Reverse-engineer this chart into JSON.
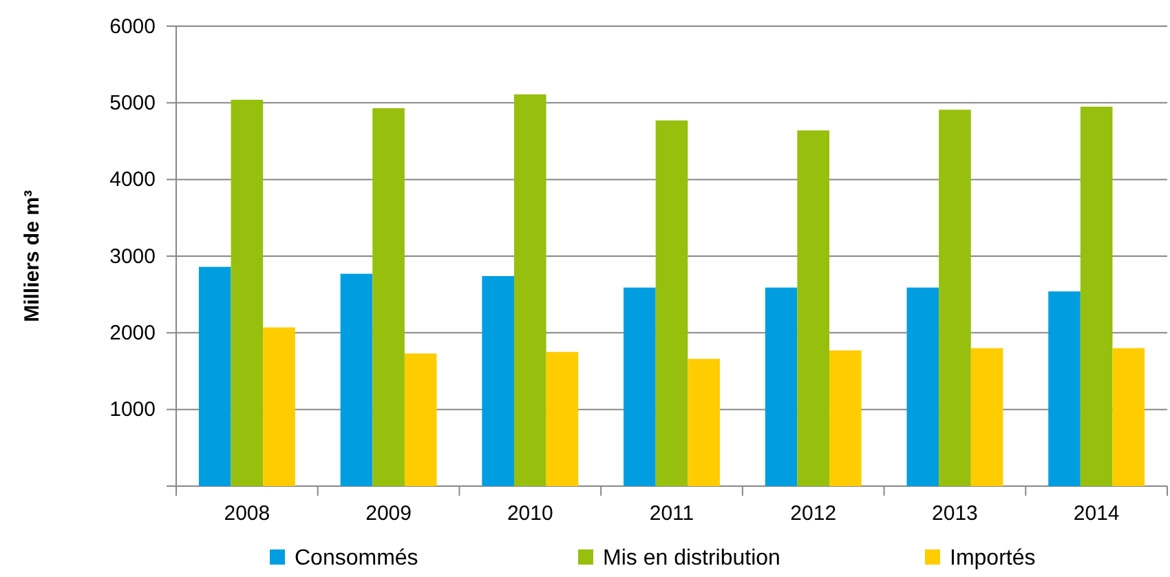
{
  "chart_data": {
    "type": "bar",
    "ylabel": "Milliers de m³",
    "categories": [
      "2008",
      "2009",
      "2010",
      "2011",
      "2012",
      "2013",
      "2014"
    ],
    "series": [
      {
        "name": "Consommés",
        "color": "#009ee0",
        "values": [
          2860,
          2770,
          2740,
          2590,
          2590,
          2590,
          2540
        ]
      },
      {
        "name": "Mis en distribution",
        "color": "#97bf0d",
        "values": [
          5040,
          4930,
          5110,
          4770,
          4640,
          4910,
          4950
        ]
      },
      {
        "name": "Importés",
        "color": "#ffcc00",
        "values": [
          2070,
          1730,
          1750,
          1660,
          1770,
          1800,
          1800
        ]
      }
    ],
    "ylim": [
      0,
      6000
    ],
    "yticks": [
      {
        "value": 0,
        "label": null
      },
      1000,
      2000,
      3000,
      4000,
      5000,
      6000
    ],
    "grid": "y",
    "legend": "bottom"
  }
}
